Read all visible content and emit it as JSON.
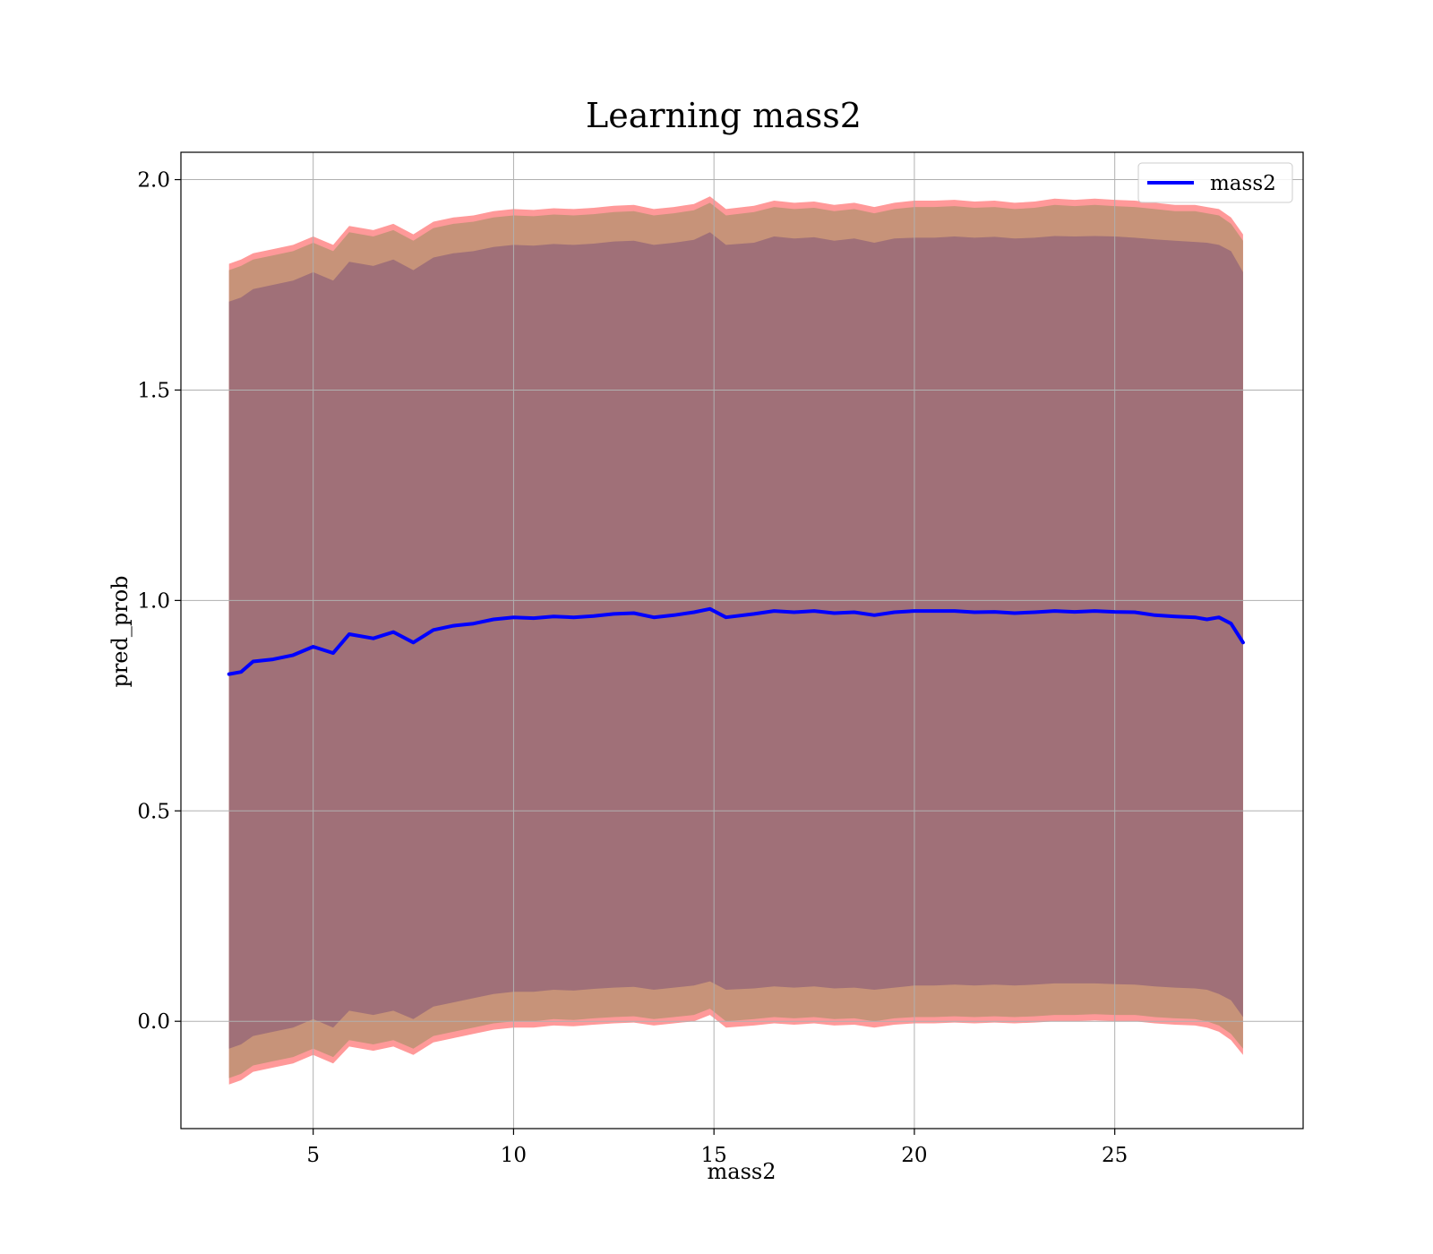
{
  "chart_data": {
    "type": "area",
    "title": "Learning mass2",
    "xlabel": "mass2",
    "ylabel": "pred_prob",
    "xlim": [
      1.7,
      29.7
    ],
    "ylim": [
      -0.255,
      2.065
    ],
    "xticks": [
      5,
      10,
      15,
      20,
      25
    ],
    "yticks": [
      0.0,
      0.5,
      1.0,
      1.5,
      2.0
    ],
    "xtick_labels": [
      "5",
      "10",
      "15",
      "20",
      "25"
    ],
    "ytick_labels": [
      "0.0",
      "0.5",
      "1.0",
      "1.5",
      "2.0"
    ],
    "grid": true,
    "legend": {
      "placement": "top-right",
      "entries": [
        "mass2"
      ]
    },
    "colors": {
      "line": "#0000ff",
      "outer_band": "#ff9999",
      "middle_band": "#c79379",
      "inner_band": "#a07078",
      "grid": "#b0b0b0"
    },
    "x": [
      2.9,
      3.2,
      3.5,
      4.0,
      4.5,
      5.0,
      5.5,
      5.9,
      6.5,
      7.0,
      7.5,
      8.0,
      8.5,
      9.0,
      9.5,
      10.0,
      10.5,
      11.0,
      11.5,
      12.0,
      12.5,
      13.0,
      13.5,
      14.0,
      14.5,
      14.9,
      15.3,
      16.0,
      16.5,
      17.0,
      17.5,
      18.0,
      18.5,
      19.0,
      19.5,
      20.0,
      20.5,
      21.0,
      21.5,
      22.0,
      22.5,
      23.0,
      23.5,
      24.0,
      24.5,
      25.0,
      25.5,
      26.0,
      26.5,
      27.0,
      27.3,
      27.6,
      27.9,
      28.2
    ],
    "series": [
      {
        "name": "mass2",
        "values": [
          0.825,
          0.83,
          0.855,
          0.86,
          0.87,
          0.89,
          0.875,
          0.92,
          0.91,
          0.925,
          0.9,
          0.93,
          0.94,
          0.945,
          0.955,
          0.96,
          0.958,
          0.962,
          0.96,
          0.963,
          0.968,
          0.97,
          0.96,
          0.965,
          0.972,
          0.98,
          0.96,
          0.968,
          0.975,
          0.972,
          0.975,
          0.97,
          0.972,
          0.965,
          0.972,
          0.975,
          0.975,
          0.975,
          0.972,
          0.973,
          0.97,
          0.972,
          0.975,
          0.973,
          0.975,
          0.973,
          0.972,
          0.965,
          0.962,
          0.96,
          0.955,
          0.96,
          0.945,
          0.9
        ]
      }
    ],
    "bands": [
      {
        "upper": [
          1.8,
          1.81,
          1.825,
          1.835,
          1.845,
          1.865,
          1.845,
          1.89,
          1.88,
          1.895,
          1.87,
          1.9,
          1.91,
          1.915,
          1.925,
          1.93,
          1.928,
          1.932,
          1.93,
          1.933,
          1.938,
          1.94,
          1.93,
          1.935,
          1.942,
          1.96,
          1.93,
          1.938,
          1.95,
          1.945,
          1.948,
          1.94,
          1.945,
          1.935,
          1.945,
          1.95,
          1.95,
          1.952,
          1.948,
          1.95,
          1.945,
          1.948,
          1.955,
          1.952,
          1.955,
          1.952,
          1.95,
          1.945,
          1.94,
          1.94,
          1.935,
          1.93,
          1.91,
          1.87
        ],
        "lower": [
          -0.15,
          -0.14,
          -0.12,
          -0.11,
          -0.1,
          -0.08,
          -0.1,
          -0.06,
          -0.07,
          -0.06,
          -0.08,
          -0.05,
          -0.04,
          -0.03,
          -0.02,
          -0.015,
          -0.015,
          -0.01,
          -0.012,
          -0.008,
          -0.005,
          -0.003,
          -0.01,
          -0.005,
          0.0,
          0.015,
          -0.015,
          -0.01,
          -0.005,
          -0.008,
          -0.005,
          -0.01,
          -0.008,
          -0.015,
          -0.008,
          -0.005,
          -0.005,
          -0.003,
          -0.005,
          -0.003,
          -0.005,
          -0.003,
          0.0,
          0.0,
          0.002,
          0.0,
          0.0,
          -0.005,
          -0.008,
          -0.01,
          -0.015,
          -0.025,
          -0.045,
          -0.08
        ]
      },
      {
        "upper": [
          1.785,
          1.795,
          1.81,
          1.82,
          1.83,
          1.85,
          1.83,
          1.875,
          1.865,
          1.88,
          1.855,
          1.885,
          1.895,
          1.9,
          1.91,
          1.915,
          1.913,
          1.917,
          1.915,
          1.918,
          1.923,
          1.925,
          1.915,
          1.92,
          1.927,
          1.945,
          1.915,
          1.923,
          1.935,
          1.93,
          1.933,
          1.925,
          1.93,
          1.92,
          1.93,
          1.935,
          1.935,
          1.937,
          1.933,
          1.935,
          1.93,
          1.933,
          1.94,
          1.937,
          1.94,
          1.937,
          1.935,
          1.93,
          1.925,
          1.925,
          1.92,
          1.915,
          1.895,
          1.855
        ],
        "lower": [
          -0.135,
          -0.125,
          -0.105,
          -0.095,
          -0.085,
          -0.065,
          -0.085,
          -0.045,
          -0.055,
          -0.045,
          -0.065,
          -0.035,
          -0.025,
          -0.015,
          -0.005,
          0.0,
          0.0,
          0.005,
          0.003,
          0.007,
          0.01,
          0.012,
          0.005,
          0.01,
          0.015,
          0.03,
          0.0,
          0.005,
          0.01,
          0.007,
          0.01,
          0.005,
          0.007,
          0.0,
          0.007,
          0.01,
          0.01,
          0.012,
          0.01,
          0.012,
          0.01,
          0.012,
          0.015,
          0.015,
          0.017,
          0.015,
          0.015,
          0.01,
          0.007,
          0.005,
          0.0,
          -0.01,
          -0.03,
          -0.065
        ]
      },
      {
        "upper": [
          1.71,
          1.72,
          1.74,
          1.75,
          1.76,
          1.78,
          1.76,
          1.805,
          1.795,
          1.81,
          1.785,
          1.815,
          1.825,
          1.83,
          1.84,
          1.845,
          1.843,
          1.847,
          1.845,
          1.848,
          1.853,
          1.855,
          1.845,
          1.85,
          1.857,
          1.875,
          1.845,
          1.85,
          1.865,
          1.86,
          1.863,
          1.855,
          1.86,
          1.85,
          1.86,
          1.862,
          1.862,
          1.865,
          1.862,
          1.864,
          1.86,
          1.862,
          1.866,
          1.865,
          1.866,
          1.865,
          1.862,
          1.858,
          1.855,
          1.852,
          1.85,
          1.845,
          1.83,
          1.78
        ],
        "lower": [
          -0.065,
          -0.055,
          -0.035,
          -0.025,
          -0.015,
          0.005,
          -0.015,
          0.025,
          0.015,
          0.025,
          0.005,
          0.035,
          0.045,
          0.055,
          0.065,
          0.07,
          0.07,
          0.075,
          0.073,
          0.077,
          0.08,
          0.082,
          0.075,
          0.08,
          0.085,
          0.095,
          0.075,
          0.078,
          0.083,
          0.08,
          0.083,
          0.078,
          0.08,
          0.075,
          0.08,
          0.085,
          0.085,
          0.087,
          0.085,
          0.087,
          0.085,
          0.087,
          0.09,
          0.09,
          0.09,
          0.088,
          0.087,
          0.083,
          0.08,
          0.078,
          0.075,
          0.065,
          0.05,
          0.01
        ]
      }
    ]
  }
}
